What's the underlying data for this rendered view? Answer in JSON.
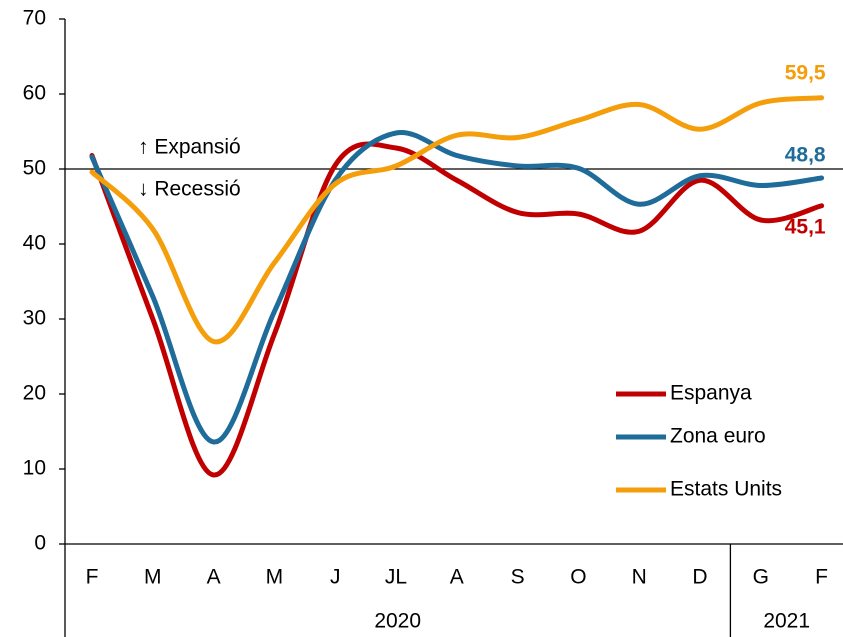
{
  "chart_data": {
    "type": "line",
    "categories": [
      "F",
      "M",
      "A",
      "M",
      "J",
      "JL",
      "A",
      "S",
      "O",
      "N",
      "D",
      "G",
      "F"
    ],
    "year_groups": [
      {
        "label": "2020",
        "span": 11
      },
      {
        "label": "2021",
        "span": 2
      }
    ],
    "series": [
      {
        "name": "Espanya",
        "color": "#c00000",
        "values": [
          51.8,
          30,
          9.2,
          28,
          50.5,
          52.8,
          48.5,
          44.2,
          44,
          41.7,
          48.5,
          43.2,
          45.1
        ],
        "value_labels": [
          null,
          null,
          null,
          null,
          null,
          null,
          null,
          null,
          null,
          null,
          null,
          null,
          "45,1"
        ]
      },
      {
        "name": "Zona euro",
        "color": "#1f6b99",
        "values": [
          51.6,
          33,
          13.6,
          31,
          48.5,
          54.8,
          51.8,
          50.4,
          50.1,
          45.3,
          49.1,
          47.8,
          48.8
        ],
        "value_labels": [
          null,
          null,
          null,
          null,
          null,
          null,
          null,
          null,
          null,
          null,
          null,
          null,
          "48,8"
        ]
      },
      {
        "name": "Estats Units",
        "color": "#f59e0b",
        "values": [
          49.6,
          42,
          27,
          37.5,
          48,
          50.4,
          54.5,
          54.2,
          56.5,
          58.6,
          55.3,
          58.8,
          59.5
        ],
        "value_labels": [
          null,
          null,
          null,
          null,
          null,
          null,
          null,
          null,
          null,
          null,
          null,
          null,
          "59,5"
        ]
      }
    ],
    "ylim": [
      0,
      70
    ],
    "yticks": [
      0,
      10,
      20,
      30,
      40,
      50,
      60,
      70
    ],
    "reference_line": {
      "value": 50,
      "labels": [
        "↑ Expansió",
        "↓ Recessió"
      ]
    },
    "legend": "lower right",
    "grid": false
  }
}
